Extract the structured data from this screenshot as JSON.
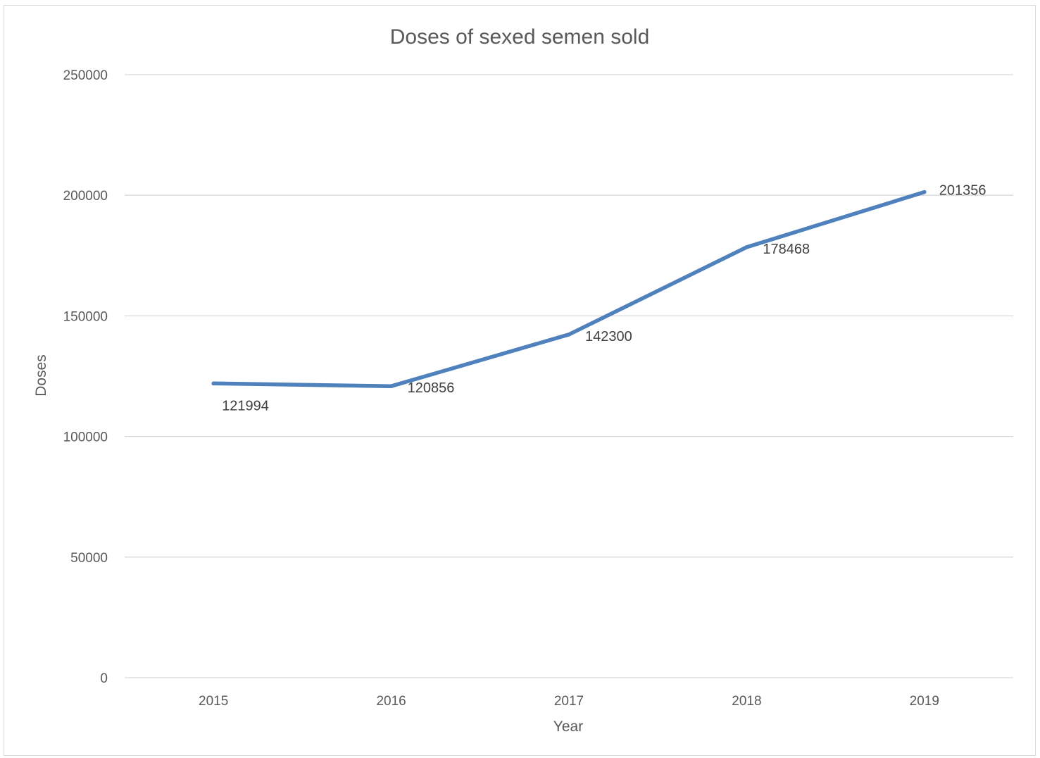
{
  "chart_data": {
    "type": "line",
    "title": "Doses of sexed semen sold",
    "xlabel": "Year",
    "ylabel": "Doses",
    "categories": [
      "2015",
      "2016",
      "2017",
      "2018",
      "2019"
    ],
    "series": [
      {
        "values": [
          121994,
          120856,
          142300,
          178468,
          201356
        ],
        "color": "#4f81bd"
      }
    ],
    "ylim": [
      0,
      250000
    ],
    "yticks": [
      0,
      50000,
      100000,
      150000,
      200000,
      250000
    ],
    "ytick_labels": [
      "0",
      "50000",
      "100000",
      "150000",
      "200000",
      "250000"
    ],
    "data_labels": [
      "121994",
      "120856",
      "142300",
      "178468",
      "201356"
    ],
    "grid": true,
    "legend": "none"
  }
}
